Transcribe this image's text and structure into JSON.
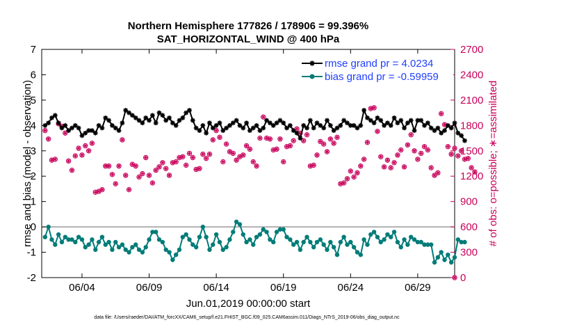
{
  "chart_data": {
    "type": "line",
    "title": "Northern Hemisphere 177826 / 178906 = 99.396%",
    "subtitle": "SAT_HORIZONTAL_WIND @ 400 hPa",
    "xlabel": "Jun.01,2019 00:00:00 start",
    "ylabel_left": "rmse and bias (model - observation)",
    "ylabel_right": "# of obs: o=possible; ∗=assimilated",
    "footnote": "data file: /Users/raeder/DAI/ATM_forcXX/CAM6_setup/f.e21.FHIST_BGC.f09_025.CAM6assim.011/Diags_NTrS_2019-06/obs_diag_output.nc",
    "xlim": [
      1,
      31.75
    ],
    "ylim_left": [
      -2,
      7
    ],
    "ylim_right": [
      0,
      2700
    ],
    "x_ticks": [
      4,
      9,
      14,
      19,
      24,
      29
    ],
    "x_tick_labels": [
      "06/04",
      "06/09",
      "06/14",
      "06/19",
      "06/24",
      "06/29"
    ],
    "y_ticks_left": [
      -2,
      -1,
      0,
      1,
      2,
      3,
      4,
      5,
      6,
      7
    ],
    "y_tick_labels_left": [
      "-2",
      "-1",
      "0",
      "1",
      "2",
      "3",
      "4",
      "5",
      "6",
      "7"
    ],
    "y_ticks_right": [
      0,
      300,
      600,
      900,
      1200,
      1500,
      1800,
      2100,
      2400,
      2700
    ],
    "y_tick_labels_right": [
      "0",
      "300",
      "600",
      "900",
      "1200",
      "1500",
      "1800",
      "2100",
      "2400",
      "2700"
    ],
    "legend_position": "top-right",
    "grid": false,
    "x_start": 1.25,
    "x_step": 0.25,
    "series": [
      {
        "name": "rmse grand pr = 4.0234",
        "axis": "left",
        "color": "#000000",
        "marker": "star",
        "values": [
          4.0,
          4.1,
          4.3,
          4.4,
          4.1,
          3.9,
          4.0,
          3.8,
          3.9,
          4.0,
          3.9,
          3.6,
          3.7,
          3.8,
          3.8,
          3.7,
          4.0,
          3.9,
          4.3,
          4.2,
          4.0,
          3.9,
          3.8,
          4.1,
          4.6,
          4.5,
          4.4,
          4.3,
          4.2,
          4.1,
          4.3,
          4.2,
          4.4,
          4.1,
          4.5,
          4.4,
          4.2,
          4.3,
          4.1,
          4.0,
          4.2,
          4.3,
          4.5,
          4.6,
          4.2,
          3.9,
          3.8,
          4.0,
          3.7,
          4.1,
          3.9,
          4.0,
          4.1,
          3.8,
          3.9,
          4.0,
          4.1,
          4.2,
          4.0,
          3.9,
          4.1,
          3.8,
          3.9,
          4.0,
          3.8,
          3.9,
          4.2,
          4.1,
          4.0,
          4.1,
          4.2,
          4.1,
          3.9,
          4.0,
          3.8,
          3.7,
          3.5,
          4.0,
          3.9,
          4.2,
          3.9,
          4.1,
          4.0,
          3.9,
          4.2,
          4.0,
          3.8,
          3.9,
          4.0,
          4.2,
          4.1,
          4.0,
          4.0,
          3.9,
          4.0,
          4.6,
          4.3,
          4.2,
          4.1,
          4.3,
          4.2,
          4.0,
          4.1,
          4.0,
          4.3,
          4.1,
          4.2,
          3.9,
          4.1,
          4.2,
          3.8,
          4.2,
          4.2,
          4.0,
          4.1,
          3.9,
          3.8,
          3.9,
          3.7,
          3.8,
          4.0,
          3.9,
          4.1,
          3.7,
          3.6,
          3.4
        ]
      },
      {
        "name": "bias grand pr = -0.59959",
        "axis": "left",
        "color": "#007c78",
        "marker": "circle",
        "values": [
          -0.4,
          0.0,
          -0.5,
          -0.7,
          -0.3,
          -0.6,
          -0.4,
          -0.5,
          -0.5,
          -0.6,
          -0.4,
          -0.5,
          -0.8,
          -0.7,
          -0.5,
          -0.9,
          -0.6,
          -0.4,
          -0.7,
          -0.6,
          -0.9,
          -0.6,
          -0.8,
          -0.7,
          -0.9,
          -1.0,
          -0.8,
          -0.7,
          -0.9,
          -1.0,
          -0.8,
          -0.5,
          -0.2,
          -0.2,
          -0.5,
          -0.6,
          -0.9,
          -1.0,
          -1.3,
          -1.1,
          -0.9,
          -0.4,
          -0.3,
          -0.5,
          -0.7,
          -0.8,
          -0.4,
          0.0,
          -0.4,
          -0.9,
          -0.7,
          -0.3,
          -0.6,
          -0.9,
          -0.8,
          -0.5,
          -0.2,
          0.2,
          0.1,
          -0.3,
          -0.6,
          -0.5,
          -0.7,
          -0.4,
          -0.3,
          -0.1,
          -0.2,
          -0.5,
          -0.6,
          -0.2,
          -0.1,
          -0.1,
          -0.4,
          -0.5,
          -0.7,
          -0.6,
          -0.9,
          -0.6,
          -0.4,
          -0.6,
          -0.8,
          -0.6,
          -0.5,
          -0.7,
          -0.9,
          -0.6,
          -0.8,
          -1.1,
          -0.6,
          -0.4,
          -0.7,
          -0.6,
          -0.8,
          -1.0,
          -1.1,
          -0.5,
          -0.7,
          -0.3,
          -0.2,
          -0.4,
          -0.6,
          -0.5,
          -0.3,
          -0.4,
          -0.2,
          -0.6,
          -0.8,
          -0.5,
          -0.7,
          -0.4,
          -0.5,
          -0.6,
          -0.6,
          -0.7,
          -0.7,
          -0.7,
          -1.4,
          -1.2,
          -1.0,
          -1.3,
          -1.1,
          -1.4,
          -1.2,
          -0.5,
          -0.6,
          -0.6
        ]
      },
      {
        "name": "# of obs possible",
        "axis": "right",
        "color": "#c8005a",
        "marker": "o",
        "values": [
          1740,
          1640,
          1390,
          1400,
          1820,
          1790,
          1710,
          1380,
          1270,
          1440,
          1530,
          1450,
          1560,
          1500,
          1590,
          1010,
          1020,
          1040,
          1320,
          1320,
          1220,
          1110,
          1320,
          1630,
          1210,
          1040,
          1340,
          1320,
          1190,
          1230,
          1420,
          1210,
          1120,
          1270,
          1310,
          1360,
          1290,
          1210,
          1360,
          1370,
          1420,
          1430,
          1330,
          1470,
          1420,
          1280,
          1290,
          1460,
          1410,
          1460,
          1630,
          1740,
          1660,
          1370,
          1580,
          1490,
          1470,
          1390,
          1430,
          1450,
          1560,
          1520,
          1370,
          1320,
          1650,
          1900,
          1650,
          1640,
          1510,
          1520,
          1640,
          1370,
          1550,
          1560,
          1620,
          1760,
          1710,
          1620,
          1690,
          1320,
          1330,
          1450,
          1610,
          1580,
          1490,
          1640,
          1590,
          1660,
          1110,
          1120,
          1170,
          1260,
          1190,
          1240,
          1320,
          1400,
          1600,
          2000,
          2010,
          1730,
          1430,
          1310,
          1390,
          1300,
          1360,
          1450,
          1510,
          1310,
          1570,
          1690,
          1500,
          1400,
          1470,
          1550,
          1510,
          1300,
          1210,
          1240,
          1940,
          1810,
          1550,
          1460,
          1530,
          1440,
          1500,
          1400,
          1410,
          1300,
          1250
        ]
      },
      {
        "name": "# of obs assimilated",
        "axis": "right",
        "color": "#c8005a",
        "marker": "star",
        "values": [
          1740,
          1640,
          1390,
          1400,
          1820,
          1790,
          1710,
          1380,
          1270,
          1440,
          1530,
          1450,
          1560,
          1500,
          1590,
          1010,
          1020,
          1040,
          1320,
          1320,
          1220,
          1110,
          1320,
          1630,
          1210,
          1040,
          1340,
          1320,
          1190,
          1230,
          1420,
          1210,
          1120,
          1270,
          1310,
          1360,
          1290,
          1210,
          1360,
          1370,
          1420,
          1430,
          1330,
          1470,
          1420,
          1280,
          1290,
          1460,
          1410,
          1460,
          1630,
          1740,
          1660,
          1370,
          1580,
          1490,
          1470,
          1390,
          1430,
          1450,
          1560,
          1520,
          1370,
          1320,
          1650,
          1900,
          1650,
          1640,
          1510,
          1520,
          1640,
          1370,
          1550,
          1560,
          1620,
          1760,
          1710,
          1620,
          1690,
          1320,
          1330,
          1450,
          1610,
          1580,
          1490,
          1640,
          1590,
          1660,
          1110,
          1120,
          1170,
          1260,
          1190,
          1240,
          1320,
          1400,
          1600,
          2000,
          2010,
          1730,
          1430,
          1310,
          1390,
          1300,
          1360,
          1450,
          1510,
          1310,
          1570,
          1690,
          1500,
          1400,
          1470,
          1550,
          1510,
          1300,
          1210,
          1240,
          1940,
          1810,
          1550,
          1460,
          1530,
          1440,
          1500,
          1400,
          1410,
          1300,
          1250
        ]
      }
    ],
    "extra_points": [
      {
        "series": "# of obs assimilated",
        "x": 31.75,
        "y": 0
      }
    ],
    "zero_line": {
      "y": 0,
      "color": "#999999"
    }
  }
}
